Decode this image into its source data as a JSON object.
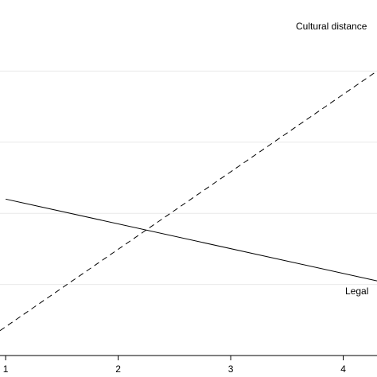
{
  "chart_data": {
    "type": "line",
    "title": "",
    "xlabel": "",
    "ylabel": "",
    "x_ticks": [
      "1",
      "2",
      "3",
      "4"
    ],
    "xlim": [
      0.95,
      4.3
    ],
    "ylim": [
      0,
      10
    ],
    "y_grid_values": [
      2,
      4,
      6,
      8
    ],
    "grid": true,
    "series": [
      {
        "name": "Cultural distance",
        "style": "dashed",
        "x": [
          0.95,
          4.3
        ],
        "y": [
          0.7,
          8.0
        ]
      },
      {
        "name": "Legal",
        "style": "solid",
        "x": [
          1.0,
          4.3
        ],
        "y": [
          4.4,
          2.1
        ]
      }
    ],
    "line_color": "#000000",
    "grid_color": "#e9e9e9"
  }
}
